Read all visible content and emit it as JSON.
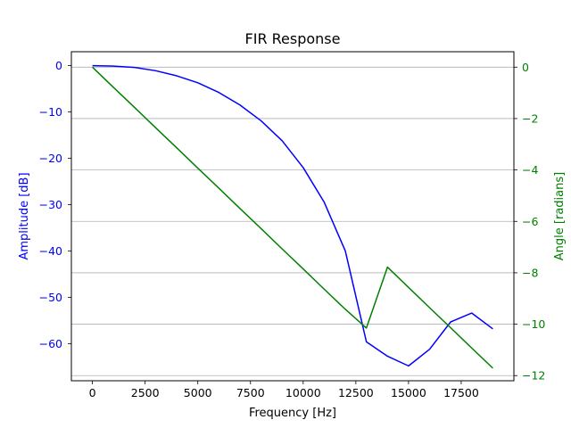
{
  "chart_data": {
    "type": "line",
    "title": "FIR Response",
    "xlabel": "Frequency [Hz]",
    "ylabel_left": "Amplitude [dB]",
    "ylabel_right": "Angle [radians]",
    "xlim": [
      -1000,
      20000
    ],
    "ylim_left": [
      -68,
      3
    ],
    "ylim_right": [
      -12.2,
      0.6
    ],
    "x_ticks": [
      0,
      2500,
      5000,
      7500,
      10000,
      12500,
      15000,
      17500
    ],
    "x_tick_labels": [
      "0",
      "2500",
      "5000",
      "7500",
      "10000",
      "12500",
      "15000",
      "17500"
    ],
    "y_left_ticks": [
      0,
      -10,
      -20,
      -30,
      -40,
      -50,
      -60
    ],
    "y_left_tick_labels": [
      "0",
      "−10",
      "−20",
      "−30",
      "−40",
      "−50",
      "−60"
    ],
    "y_right_ticks": [
      0,
      -2,
      -4,
      -6,
      -8,
      -10,
      -12
    ],
    "y_right_tick_labels": [
      "0",
      "−2",
      "−4",
      "−6",
      "−8",
      "−10",
      "−12"
    ],
    "grid": "horizontal lines at right-axis ticks",
    "colors": {
      "amplitude": "#0000ff",
      "angle": "#008000",
      "grid": "#b0b0b0",
      "axes": "#000000"
    },
    "x": [
      0,
      1000,
      2000,
      3000,
      4000,
      5000,
      6000,
      7000,
      8000,
      9000,
      10000,
      11000,
      12000,
      13000,
      14000,
      15000,
      16000,
      17000,
      18000,
      19000
    ],
    "series": [
      {
        "axis": "left",
        "color": "#0000ff",
        "values": [
          0,
          -0.1,
          -0.4,
          -1.1,
          -2.2,
          -3.7,
          -5.8,
          -8.5,
          -11.9,
          -16.2,
          -22.0,
          -29.5,
          -40.0,
          -59.6,
          -62.7,
          -64.8,
          -61.2,
          -55.3,
          -53.4,
          -56.8
        ]
      },
      {
        "axis": "right",
        "color": "#008000",
        "values": [
          0,
          -0.79,
          -1.57,
          -2.36,
          -3.14,
          -3.93,
          -4.71,
          -5.5,
          -6.28,
          -7.07,
          -7.85,
          -8.64,
          -9.42,
          -10.15,
          -7.78,
          -8.57,
          -9.36,
          -10.14,
          -10.93,
          -11.71
        ]
      }
    ]
  }
}
